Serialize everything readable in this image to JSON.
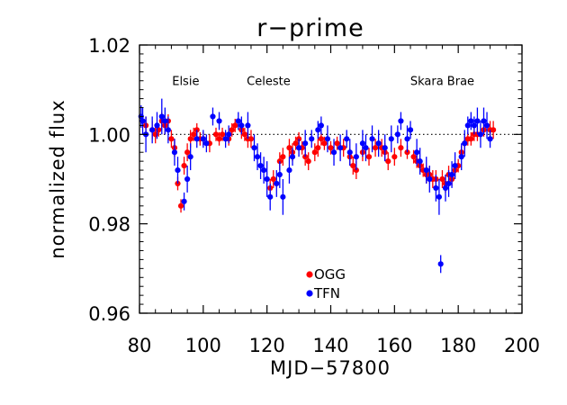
{
  "chart_data": {
    "type": "scatter",
    "title": "r−prime",
    "xlabel": "MJD−57800",
    "ylabel": "normalized flux",
    "xlim": [
      80,
      200
    ],
    "ylim": [
      0.96,
      1.02
    ],
    "xticks": [
      "80",
      "100",
      "120",
      "140",
      "160",
      "180",
      "200"
    ],
    "yticks": [
      "0.96",
      "0.98",
      "1.00",
      "1.02"
    ],
    "reference_line": {
      "y": 1.0,
      "style": "dotted"
    },
    "annotations": [
      {
        "text": "Elsie",
        "x": 94.5,
        "y": 1.011
      },
      {
        "text": "Celeste",
        "x": 120.5,
        "y": 1.011
      },
      {
        "text": "Skara Brae",
        "x": 175,
        "y": 1.011
      }
    ],
    "legend": {
      "position": "lower-center",
      "entries": [
        "OGG",
        "TFN"
      ]
    },
    "colors": {
      "OGG": "#ff0000",
      "TFN": "#0000ff"
    },
    "series": [
      {
        "name": "OGG",
        "color": "#ff0000",
        "points": [
          [
            82,
            1.002,
            0.002
          ],
          [
            84,
            1.001,
            0.002
          ],
          [
            85,
            1.0,
            0.002
          ],
          [
            86,
            1.001,
            0.0015
          ],
          [
            87,
            1.003,
            0.002
          ],
          [
            88,
            1.002,
            0.002
          ],
          [
            89,
            1.003,
            0.0015
          ],
          [
            90,
            0.999,
            0.002
          ],
          [
            91,
            0.997,
            0.002
          ],
          [
            92,
            0.989,
            0.0015
          ],
          [
            93,
            0.984,
            0.0015
          ],
          [
            94,
            0.993,
            0.002
          ],
          [
            95,
            0.996,
            0.002
          ],
          [
            96,
            0.999,
            0.002
          ],
          [
            97,
            1.0,
            0.0015
          ],
          [
            98,
            1.001,
            0.0015
          ],
          [
            99,
            0.999,
            0.0015
          ],
          [
            100,
            0.999,
            0.0015
          ],
          [
            102,
            0.998,
            0.002
          ],
          [
            104,
            1.0,
            0.0015
          ],
          [
            105,
            0.999,
            0.0015
          ],
          [
            106,
            1.0,
            0.0015
          ],
          [
            108,
            0.999,
            0.0015
          ],
          [
            109,
            1.001,
            0.0015
          ],
          [
            110,
            1.002,
            0.0015
          ],
          [
            112,
            1.001,
            0.002
          ],
          [
            113,
            1.0,
            0.0015
          ],
          [
            114,
            0.999,
            0.002
          ],
          [
            115,
            0.999,
            0.002
          ],
          [
            121,
            0.988,
            0.002
          ],
          [
            122,
            0.99,
            0.002
          ],
          [
            124,
            0.994,
            0.002
          ],
          [
            125,
            0.995,
            0.002
          ],
          [
            127,
            0.997,
            0.002
          ],
          [
            128,
            0.996,
            0.002
          ],
          [
            129,
            0.998,
            0.0015
          ],
          [
            130,
            0.999,
            0.0015
          ],
          [
            131,
            0.997,
            0.0015
          ],
          [
            132,
            0.995,
            0.002
          ],
          [
            133,
            0.994,
            0.002
          ],
          [
            135,
            0.996,
            0.002
          ],
          [
            136,
            0.997,
            0.002
          ],
          [
            137,
            0.999,
            0.0015
          ],
          [
            138,
            0.998,
            0.0015
          ],
          [
            140,
            0.997,
            0.0015
          ],
          [
            142,
            0.998,
            0.0015
          ],
          [
            144,
            0.997,
            0.002
          ],
          [
            146,
            0.995,
            0.002
          ],
          [
            147,
            0.993,
            0.002
          ],
          [
            148,
            0.992,
            0.002
          ],
          [
            150,
            0.996,
            0.002
          ],
          [
            152,
            0.995,
            0.002
          ],
          [
            154,
            0.997,
            0.002
          ],
          [
            156,
            0.997,
            0.002
          ],
          [
            157,
            0.996,
            0.002
          ],
          [
            158,
            0.994,
            0.002
          ],
          [
            160,
            0.995,
            0.002
          ],
          [
            162,
            0.997,
            0.002
          ],
          [
            164,
            0.996,
            0.0015
          ],
          [
            166,
            0.995,
            0.0015
          ],
          [
            167,
            0.994,
            0.0015
          ],
          [
            168,
            0.993,
            0.0015
          ],
          [
            169,
            0.992,
            0.0015
          ],
          [
            170,
            0.991,
            0.002
          ],
          [
            171,
            0.991,
            0.002
          ],
          [
            172,
            0.99,
            0.002
          ],
          [
            173,
            0.99,
            0.002
          ],
          [
            175,
            0.99,
            0.002
          ],
          [
            176,
            0.989,
            0.002
          ],
          [
            177,
            0.991,
            0.002
          ],
          [
            178,
            0.99,
            0.0015
          ],
          [
            179,
            0.992,
            0.0015
          ],
          [
            180,
            0.993,
            0.0015
          ],
          [
            181,
            0.996,
            0.0015
          ],
          [
            182,
            0.998,
            0.0015
          ],
          [
            183,
            0.999,
            0.0015
          ],
          [
            184,
            0.999,
            0.0015
          ],
          [
            185,
            1.0,
            0.0015
          ],
          [
            186,
            1.0,
            0.0015
          ],
          [
            188,
            1.001,
            0.0015
          ],
          [
            190,
            1.001,
            0.002
          ],
          [
            191,
            1.001,
            0.002
          ]
        ]
      },
      {
        "name": "TFN",
        "color": "#0000ff",
        "points": [
          [
            80.5,
            1.004,
            0.0025
          ],
          [
            81,
            1.003,
            0.003
          ],
          [
            82,
            1.0,
            0.004
          ],
          [
            84,
            1.001,
            0.003
          ],
          [
            85.5,
            1.002,
            0.003
          ],
          [
            87,
            1.004,
            0.004
          ],
          [
            88,
            1.003,
            0.003
          ],
          [
            89,
            1.001,
            0.003
          ],
          [
            91,
            0.996,
            0.003
          ],
          [
            92,
            0.992,
            0.003
          ],
          [
            94,
            0.985,
            0.002
          ],
          [
            95,
            0.99,
            0.003
          ],
          [
            96,
            0.995,
            0.003
          ],
          [
            98,
            0.999,
            0.002
          ],
          [
            100,
            0.999,
            0.002
          ],
          [
            101,
            0.998,
            0.002
          ],
          [
            103,
            1.004,
            0.002
          ],
          [
            105,
            1.003,
            0.002
          ],
          [
            107,
            0.999,
            0.002
          ],
          [
            108,
            1.0,
            0.002
          ],
          [
            111,
            1.003,
            0.002
          ],
          [
            112,
            1.002,
            0.002
          ],
          [
            114,
            1.002,
            0.003
          ],
          [
            116,
            0.997,
            0.003
          ],
          [
            117,
            0.995,
            0.003
          ],
          [
            118,
            0.993,
            0.003
          ],
          [
            119,
            0.992,
            0.003
          ],
          [
            120,
            0.99,
            0.004
          ],
          [
            121,
            0.986,
            0.003
          ],
          [
            123,
            0.989,
            0.003
          ],
          [
            124,
            0.991,
            0.003
          ],
          [
            125,
            0.986,
            0.004
          ],
          [
            127,
            0.992,
            0.003
          ],
          [
            128,
            0.995,
            0.002
          ],
          [
            130,
            0.997,
            0.002
          ],
          [
            132,
            0.998,
            0.003
          ],
          [
            134,
            0.999,
            0.002
          ],
          [
            136,
            1.001,
            0.002
          ],
          [
            137,
            1.002,
            0.002
          ],
          [
            139,
            0.999,
            0.003
          ],
          [
            141,
            0.996,
            0.003
          ],
          [
            143,
            0.997,
            0.003
          ],
          [
            145,
            0.999,
            0.002
          ],
          [
            146,
            0.996,
            0.003
          ],
          [
            148,
            0.995,
            0.003
          ],
          [
            150,
            0.998,
            0.003
          ],
          [
            151,
            0.997,
            0.003
          ],
          [
            153,
            0.999,
            0.003
          ],
          [
            155,
            0.998,
            0.003
          ],
          [
            157,
            0.997,
            0.003
          ],
          [
            159,
            0.999,
            0.003
          ],
          [
            161,
            1.0,
            0.002
          ],
          [
            162,
            1.003,
            0.002
          ],
          [
            164,
            0.999,
            0.003
          ],
          [
            165,
            1.001,
            0.002
          ],
          [
            167,
            0.996,
            0.003
          ],
          [
            168,
            0.994,
            0.003
          ],
          [
            170,
            0.992,
            0.003
          ],
          [
            171,
            0.99,
            0.003
          ],
          [
            173,
            0.988,
            0.003
          ],
          [
            174,
            0.986,
            0.004
          ],
          [
            174.5,
            0.971,
            0.002
          ],
          [
            176,
            0.988,
            0.003
          ],
          [
            177,
            0.989,
            0.003
          ],
          [
            178,
            0.991,
            0.003
          ],
          [
            179,
            0.993,
            0.003
          ],
          [
            181,
            0.995,
            0.003
          ],
          [
            182,
            0.998,
            0.003
          ],
          [
            183,
            1.002,
            0.002
          ],
          [
            184,
            1.003,
            0.002
          ],
          [
            185,
            1.002,
            0.002
          ],
          [
            186,
            1.003,
            0.003
          ],
          [
            187,
            1.0,
            0.003
          ],
          [
            188,
            1.003,
            0.003
          ],
          [
            189,
            1.002,
            0.003
          ],
          [
            190,
            0.999,
            0.002
          ]
        ]
      }
    ]
  }
}
